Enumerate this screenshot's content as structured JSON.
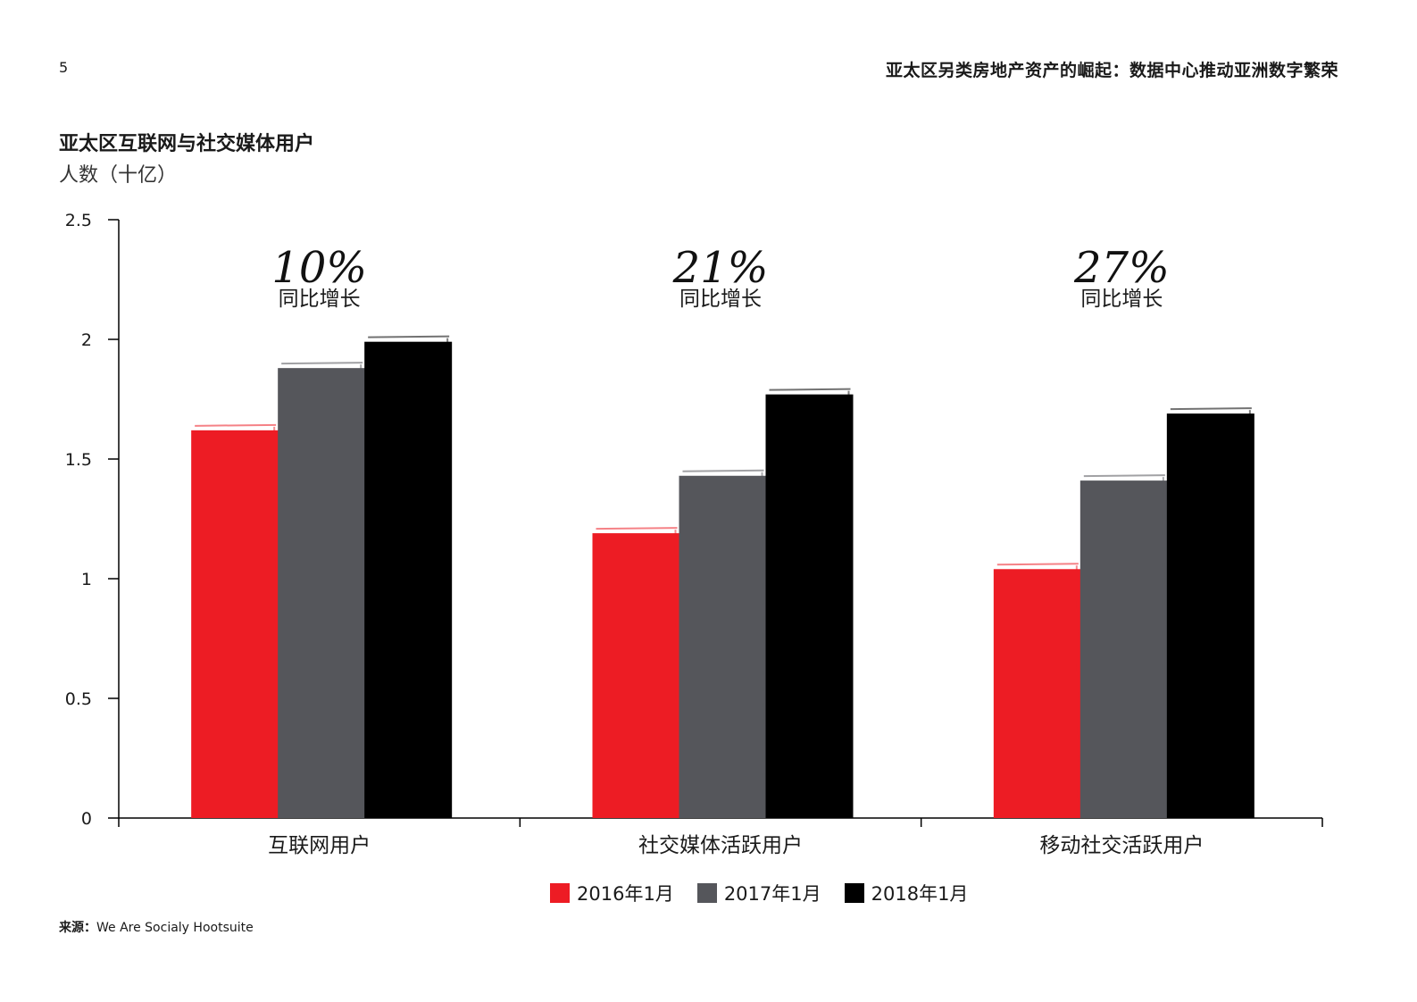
{
  "header": {
    "page_number": "5",
    "doc_title": "亚太区另类房地产资产的崛起：数据中心推动亚洲数字繁荣"
  },
  "footer": {
    "source_label": "来源：",
    "source_text": "We Are Socialy Hootsuite"
  },
  "colors": {
    "series": [
      "#ed1c24",
      "#55565b",
      "#000000"
    ]
  },
  "chart_data": {
    "type": "bar",
    "title": "亚太区互联网与社交媒体用户",
    "ylabel": "人数（十亿）",
    "xlabel": "",
    "ylim": [
      0,
      2.5
    ],
    "yticks": [
      "0",
      "0.5",
      "1",
      "1.5",
      "2",
      "2.5"
    ],
    "categories": [
      "互联网用户",
      "社交媒体活跃用户",
      "移动社交活跃用户"
    ],
    "series": [
      {
        "name": "2016年1月",
        "values": [
          1.62,
          1.19,
          1.04
        ]
      },
      {
        "name": "2017年1月",
        "values": [
          1.88,
          1.43,
          1.41
        ]
      },
      {
        "name": "2018年1月",
        "values": [
          1.99,
          1.77,
          1.69
        ]
      }
    ],
    "annotations": [
      {
        "percent": "10%",
        "label": "同比增长"
      },
      {
        "percent": "21%",
        "label": "同比增长"
      },
      {
        "percent": "27%",
        "label": "同比增长"
      }
    ],
    "legend_position": "bottom-center"
  }
}
